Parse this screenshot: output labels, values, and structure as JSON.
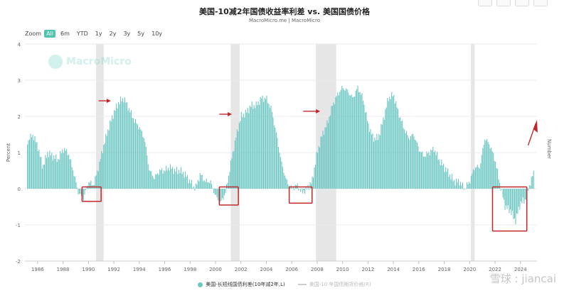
{
  "page": {
    "title": "美国-10减2年国债收益率利差 vs. 美国国债价格",
    "subtitle": "MacroMicro.me | MacroMicro",
    "watermark_brand": "MacroMicro",
    "xueqiu_watermark": "雪球 : jiancai"
  },
  "zoom": {
    "label": "Zoom",
    "options": [
      "All",
      "6m",
      "YTD",
      "1y",
      "2y",
      "3y",
      "5y",
      "10y"
    ],
    "active": "All"
  },
  "legend": {
    "series1": "美国-长短线国债利差(10年减2年,L)",
    "series2": "美国-10 年国债期货价格(R)"
  },
  "colors": {
    "bar": "#6cc7c3",
    "recession": "#e6e6e6",
    "annotation": "#c0282b",
    "zoom_active": "#4fc3b0",
    "series2": "#cccccc"
  },
  "chart_data": {
    "type": "bar",
    "title": "美国-10减2年国债收益率利差 vs. 美国国债价格",
    "subtitle": "MacroMicro.me | MacroMicro",
    "ylabel_left": "Percent",
    "ylabel_right": "Number",
    "ylim": [
      -2,
      4
    ],
    "yticks": [
      "4",
      "3",
      "2",
      "1",
      "0",
      "-1",
      "-2"
    ],
    "xlim": [
      1985,
      2025.3
    ],
    "xticks": [
      "1986",
      "1988",
      "1990",
      "1992",
      "1994",
      "1996",
      "1998",
      "2000",
      "2002",
      "2004",
      "2006",
      "2008",
      "2010",
      "2012",
      "2014",
      "2016",
      "2018",
      "2020",
      "2022",
      "2024"
    ],
    "series": [
      {
        "name": "美国-长短线国债利差(10年减2年,L)",
        "points": [
          [
            1985.2,
            1.3
          ],
          [
            1985.6,
            1.5
          ],
          [
            1986.0,
            1.2
          ],
          [
            1986.4,
            0.6
          ],
          [
            1986.8,
            1.0
          ],
          [
            1987.2,
            0.9
          ],
          [
            1987.6,
            0.8
          ],
          [
            1988.0,
            1.1
          ],
          [
            1988.4,
            1.0
          ],
          [
            1988.8,
            0.5
          ],
          [
            1989.2,
            -0.1
          ],
          [
            1989.6,
            -0.3
          ],
          [
            1990.0,
            0.2
          ],
          [
            1990.4,
            0.1
          ],
          [
            1990.8,
            0.6
          ],
          [
            1991.2,
            1.2
          ],
          [
            1991.6,
            1.7
          ],
          [
            1992.0,
            2.1
          ],
          [
            1992.4,
            2.4
          ],
          [
            1992.8,
            2.5
          ],
          [
            1993.2,
            2.2
          ],
          [
            1993.6,
            1.9
          ],
          [
            1994.0,
            1.7
          ],
          [
            1994.4,
            1.4
          ],
          [
            1994.8,
            0.5
          ],
          [
            1995.2,
            0.3
          ],
          [
            1995.6,
            0.5
          ],
          [
            1996.0,
            0.5
          ],
          [
            1996.4,
            0.6
          ],
          [
            1996.8,
            0.5
          ],
          [
            1997.2,
            0.5
          ],
          [
            1997.6,
            0.4
          ],
          [
            1998.0,
            0.2
          ],
          [
            1998.4,
            0.0
          ],
          [
            1998.8,
            0.4
          ],
          [
            1999.2,
            0.2
          ],
          [
            1999.6,
            0.2
          ],
          [
            2000.0,
            -0.2
          ],
          [
            2000.4,
            -0.4
          ],
          [
            2000.8,
            -0.1
          ],
          [
            2001.2,
            0.7
          ],
          [
            2001.6,
            1.4
          ],
          [
            2002.0,
            2.0
          ],
          [
            2002.4,
            2.1
          ],
          [
            2002.8,
            2.3
          ],
          [
            2003.2,
            2.3
          ],
          [
            2003.6,
            2.5
          ],
          [
            2004.0,
            2.5
          ],
          [
            2004.4,
            2.2
          ],
          [
            2004.8,
            1.5
          ],
          [
            2005.2,
            0.7
          ],
          [
            2005.6,
            0.2
          ],
          [
            2006.0,
            0.0
          ],
          [
            2006.4,
            0.1
          ],
          [
            2006.8,
            -0.1
          ],
          [
            2007.2,
            0.0
          ],
          [
            2007.6,
            0.2
          ],
          [
            2008.0,
            1.0
          ],
          [
            2008.4,
            1.5
          ],
          [
            2008.8,
            1.8
          ],
          [
            2009.2,
            2.3
          ],
          [
            2009.6,
            2.6
          ],
          [
            2010.0,
            2.8
          ],
          [
            2010.4,
            2.7
          ],
          [
            2010.8,
            2.5
          ],
          [
            2011.2,
            2.8
          ],
          [
            2011.6,
            2.5
          ],
          [
            2012.0,
            1.8
          ],
          [
            2012.4,
            1.4
          ],
          [
            2012.8,
            1.4
          ],
          [
            2013.2,
            1.9
          ],
          [
            2013.6,
            2.5
          ],
          [
            2014.0,
            2.6
          ],
          [
            2014.4,
            2.1
          ],
          [
            2014.8,
            1.7
          ],
          [
            2015.2,
            1.4
          ],
          [
            2015.6,
            1.5
          ],
          [
            2016.0,
            1.1
          ],
          [
            2016.4,
            0.9
          ],
          [
            2016.8,
            1.0
          ],
          [
            2017.2,
            1.1
          ],
          [
            2017.6,
            0.8
          ],
          [
            2018.0,
            0.6
          ],
          [
            2018.4,
            0.4
          ],
          [
            2018.8,
            0.2
          ],
          [
            2019.2,
            0.2
          ],
          [
            2019.6,
            0.0
          ],
          [
            2020.0,
            0.2
          ],
          [
            2020.4,
            0.6
          ],
          [
            2020.8,
            0.6
          ],
          [
            2021.2,
            1.4
          ],
          [
            2021.6,
            1.2
          ],
          [
            2022.0,
            0.8
          ],
          [
            2022.4,
            0.1
          ],
          [
            2022.8,
            -0.5
          ],
          [
            2023.2,
            -0.6
          ],
          [
            2023.6,
            -0.9
          ],
          [
            2024.0,
            -0.4
          ],
          [
            2024.4,
            -0.3
          ],
          [
            2024.8,
            0.2
          ],
          [
            2025.1,
            0.5
          ]
        ]
      }
    ],
    "recession_periods": [
      [
        1990.6,
        1991.2
      ],
      [
        2001.2,
        2001.9
      ],
      [
        2007.9,
        2009.5
      ],
      [
        2020.1,
        2020.4
      ]
    ],
    "annotations": {
      "boxes": [
        [
          1989.5,
          1991.0,
          -0.35,
          0.05
        ],
        [
          2000.3,
          2001.8,
          -0.45,
          0.05
        ],
        [
          2005.8,
          2007.6,
          -0.4,
          0.05
        ],
        [
          2021.8,
          2024.5,
          -1.17,
          0.05
        ]
      ],
      "arrows": [
        [
          1990.8,
          2.43,
          0.68
        ],
        [
          2000.3,
          2.06,
          0.71
        ],
        [
          2006.9,
          2.14,
          1.05
        ],
        [
          2024.4,
          2.06,
          0.35
        ]
      ]
    }
  }
}
